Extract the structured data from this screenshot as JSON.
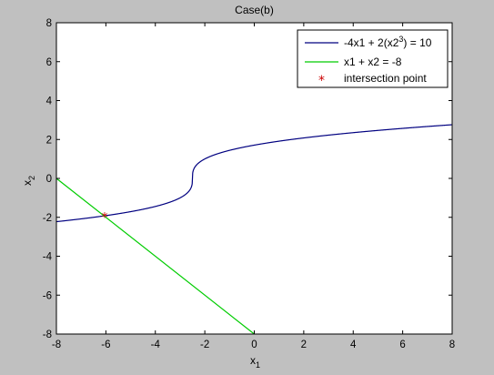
{
  "chart_data": {
    "type": "line",
    "title": "Case(b)",
    "xlabel": "x",
    "xlabel_sub": "1",
    "ylabel": "x",
    "ylabel_sub": "2",
    "xlim": [
      -8,
      8
    ],
    "ylim": [
      -8,
      8
    ],
    "xticks": [
      -8,
      -6,
      -4,
      -2,
      0,
      2,
      4,
      6,
      8
    ],
    "yticks": [
      -8,
      -6,
      -4,
      -2,
      0,
      2,
      4,
      6,
      8
    ],
    "grid": false,
    "legend_position": "top-right",
    "series": [
      {
        "name": "-4x1 + 2(x2^3) = 10",
        "legend_parts": [
          "-4x1 + 2(x2",
          "3",
          ") = 10"
        ],
        "color": "#000080",
        "equation": "2*x2^3 - 4*x1 = 10"
      },
      {
        "name": "x1 + x2 = -8",
        "color": "#00cc00",
        "x": [
          -8,
          0
        ],
        "y": [
          0,
          -8
        ]
      },
      {
        "name": "intersection point",
        "color": "#cc0000",
        "marker": "*",
        "x": [
          -6.05
        ],
        "y": [
          -1.95
        ]
      }
    ]
  }
}
